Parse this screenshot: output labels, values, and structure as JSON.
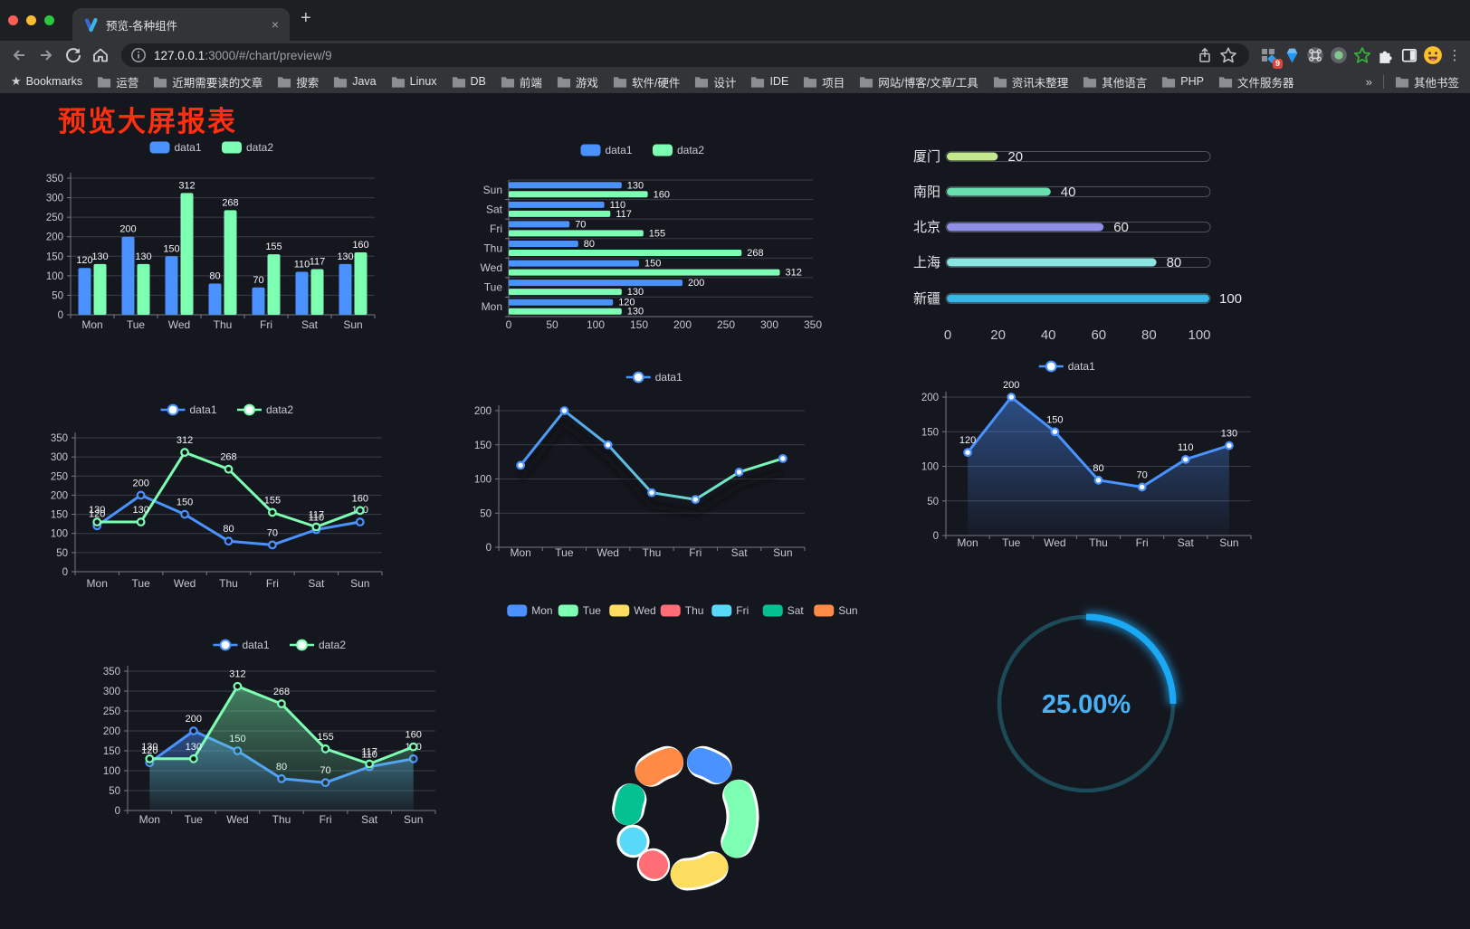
{
  "browser": {
    "traffic_lights": [
      "#ff5f57",
      "#febc2e",
      "#28c840"
    ],
    "tab_title": "预览-各种组件",
    "tab_close": "×",
    "new_tab": "+",
    "url_host": "127.0.0.1",
    "url_rest": ":3000/#/chart/preview/9",
    "extension_badge": "9",
    "bookmarks_label": "Bookmarks",
    "bookmarks": [
      "运营",
      "近期需要读的文章",
      "搜索",
      "Java",
      "Linux",
      "DB",
      "前端",
      "游戏",
      "软件/硬件",
      "设计",
      "IDE",
      "项目",
      "网站/博客/文章/工具",
      "资讯未整理",
      "其他语言",
      "PHP",
      "文件服务器"
    ],
    "bookmarks_overflow": "»",
    "other_bookmarks_label": "其他书签",
    "menu_dots": "⋮"
  },
  "page": {
    "title": "预览大屏报表",
    "title_color": "#ff2f10",
    "background": "#15171f"
  },
  "chart_data": [
    {
      "id": "bar-grouped",
      "type": "bar",
      "orientation": "vertical",
      "categories": [
        "Mon",
        "Tue",
        "Wed",
        "Thu",
        "Fri",
        "Sat",
        "Sun"
      ],
      "series": [
        {
          "name": "data1",
          "color": "#4992ff",
          "values": [
            120,
            200,
            150,
            80,
            70,
            110,
            130
          ]
        },
        {
          "name": "data2",
          "color": "#7cffb2",
          "values": [
            130,
            130,
            312,
            268,
            155,
            117,
            160
          ]
        }
      ],
      "ylim": [
        0,
        350
      ],
      "ytick_step": 50,
      "legend_position": "top",
      "value_labels": true,
      "grid": true
    },
    {
      "id": "bar-horizontal",
      "type": "bar",
      "orientation": "horizontal",
      "categories": [
        "Mon",
        "Tue",
        "Wed",
        "Thu",
        "Fri",
        "Sat",
        "Sun"
      ],
      "series": [
        {
          "name": "data1",
          "color": "#4992ff",
          "values": [
            120,
            200,
            150,
            80,
            70,
            110,
            130
          ]
        },
        {
          "name": "data2",
          "color": "#7cffb2",
          "values": [
            130,
            130,
            312,
            268,
            155,
            117,
            160
          ]
        }
      ],
      "xlim": [
        0,
        350
      ],
      "xtick_step": 50,
      "legend_position": "top",
      "value_labels": true,
      "grid": true
    },
    {
      "id": "progress-bars",
      "type": "bar",
      "orientation": "horizontal-progress",
      "categories": [
        "厦门",
        "南阳",
        "北京",
        "上海",
        "新疆"
      ],
      "values": [
        20,
        40,
        60,
        80,
        100
      ],
      "colors": [
        "#c3e88d",
        "#68e0ae",
        "#8f90e5",
        "#8be5e0",
        "#38b6e6"
      ],
      "xlim": [
        0,
        100
      ],
      "xticks": [
        0,
        20,
        40,
        60,
        80,
        100
      ],
      "value_labels": true
    },
    {
      "id": "line-two",
      "type": "line",
      "categories": [
        "Mon",
        "Tue",
        "Wed",
        "Thu",
        "Fri",
        "Sat",
        "Sun"
      ],
      "series": [
        {
          "name": "data1",
          "color": "#4992ff",
          "values": [
            120,
            200,
            150,
            80,
            70,
            110,
            130
          ]
        },
        {
          "name": "data2",
          "color": "#7cffb2",
          "values": [
            130,
            130,
            312,
            268,
            155,
            117,
            160
          ]
        }
      ],
      "ylim": [
        0,
        350
      ],
      "ytick_step": 50,
      "legend_position": "top",
      "value_labels": true,
      "grid": true
    },
    {
      "id": "line-gradient",
      "type": "line",
      "categories": [
        "Mon",
        "Tue",
        "Wed",
        "Thu",
        "Fri",
        "Sat",
        "Sun"
      ],
      "series": [
        {
          "name": "data1",
          "gradient": [
            "#4992ff",
            "#7cffb2"
          ],
          "values": [
            120,
            200,
            150,
            80,
            70,
            110,
            130
          ],
          "shadow": true
        }
      ],
      "ylim": [
        0,
        200
      ],
      "ytick_step": 50,
      "legend_position": "top",
      "value_labels": false,
      "grid": true
    },
    {
      "id": "line-area",
      "type": "line",
      "categories": [
        "Mon",
        "Tue",
        "Wed",
        "Thu",
        "Fri",
        "Sat",
        "Sun"
      ],
      "series": [
        {
          "name": "data1",
          "color": "#4992ff",
          "values": [
            120,
            200,
            150,
            80,
            70,
            110,
            130
          ],
          "area": true
        }
      ],
      "ylim": [
        0,
        200
      ],
      "ytick_step": 50,
      "legend_position": "top",
      "value_labels": true,
      "grid": true
    },
    {
      "id": "line-area-two",
      "type": "line",
      "categories": [
        "Mon",
        "Tue",
        "Wed",
        "Thu",
        "Fri",
        "Sat",
        "Sun"
      ],
      "series": [
        {
          "name": "data1",
          "color": "#4992ff",
          "values": [
            120,
            200,
            150,
            80,
            70,
            110,
            130
          ],
          "area": true
        },
        {
          "name": "data2",
          "color": "#7cffb2",
          "values": [
            130,
            130,
            312,
            268,
            155,
            117,
            160
          ],
          "area": true
        }
      ],
      "ylim": [
        0,
        350
      ],
      "ytick_step": 50,
      "legend_position": "top",
      "value_labels": true,
      "grid": true
    },
    {
      "id": "donut",
      "type": "pie",
      "categories": [
        "Mon",
        "Tue",
        "Wed",
        "Thu",
        "Fri",
        "Sat",
        "Sun"
      ],
      "values": [
        120,
        200,
        150,
        80,
        70,
        110,
        130
      ],
      "colors": [
        "#4992ff",
        "#7cffb2",
        "#fddd60",
        "#ff6e76",
        "#58d9f9",
        "#05c091",
        "#ff8a45"
      ],
      "legend_position": "top",
      "border_color": "#ffffff"
    },
    {
      "id": "gauge",
      "type": "gauge",
      "percent": 25,
      "value_label": "25.00%",
      "arc_color": "#1ba9f5",
      "track_color": "#1d4a57",
      "text_color": "#49b1f5"
    }
  ]
}
